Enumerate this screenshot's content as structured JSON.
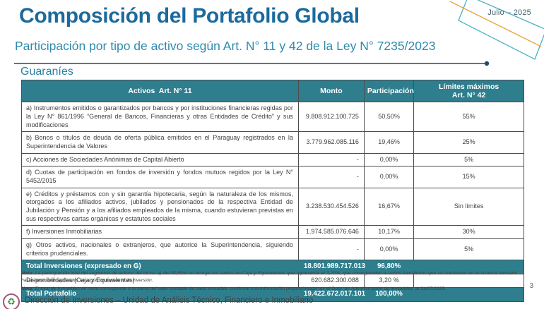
{
  "slide": {
    "title": "Composición del Portafolio Global",
    "subtitle": "Participación por tipo de activo según Art. N° 11 y 42 de la Ley N° 7235/2023",
    "date": "Julio – 2025",
    "section_label": "Guaraníes",
    "page_number": "3",
    "footer_text": "Dirección de Inversiones – Unidad de Análisis Técnico, Financiero e Inmobiliario",
    "logo_icon": "♻"
  },
  "colors": {
    "title_blue": "#1b6a9d",
    "subtitle_blue": "#2e8bac",
    "table_header_teal": "#2e7e8e",
    "total_row_teal": "#2e7e8e",
    "accent_teal_line": "#4ab2c6",
    "accent_orange_line": "#e9a23b",
    "divider_dark_teal": "#1c4f63",
    "body_text": "#3f3f3f"
  },
  "table": {
    "columns": [
      "Activos  Art. N° 11",
      "Monto",
      "Participación",
      "Límites máximos\nArt. N° 42"
    ],
    "rows": [
      {
        "label": "a) Instrumentos emitidos o garantizados por bancos y por instituciones financieras regidas por la Ley N° 861/1996 “General de Bancos, Financieras y otras Entidades de Crédito” y sus modificaciones",
        "monto": "9.808.912.100.725",
        "participacion": "50,50%",
        "limite": "55%"
      },
      {
        "label": "b) Bonos o títulos de deuda de oferta pública emitidos en el Paraguay registrados en la Superintendencia de Valores",
        "monto": "3.779.962.085.116",
        "participacion": "19,46%",
        "limite": "25%"
      },
      {
        "label": "c) Acciones de Sociedades Anónimas de Capital Abierto",
        "monto": "-",
        "participacion": "0,00%",
        "limite": "5%"
      },
      {
        "label": "d) Cuotas de participación en fondos de inversión y fondos mutuos regidos por la Ley N° 5452/2015",
        "monto": "-",
        "participacion": "0,00%",
        "limite": "15%"
      },
      {
        "label": "e) Créditos y préstamos con y sin garantía hipotecaria, según la naturaleza de los mismos, otorgados a los afiliados activos, jubilados y pensionados de la respectiva Entidad de Jubilación y Pensión y a los afiliados empleados de la misma, cuando estuvieran previstas en sus respectivas cartas orgánicas y estatutos sociales",
        "monto": "3.238.530.454.526",
        "participacion": "16,67%",
        "limite": "Sin límites"
      },
      {
        "label": "f) Inversiones Inmobiliarias",
        "monto": "1.974.585.076.646",
        "participacion": "10,17%",
        "limite": "30%"
      },
      {
        "label": "g) Otros activos, nacionales o extranjeros, que autorice la Superintendencia, siguiendo criterios prudenciales.",
        "monto": "-",
        "participacion": "0,00%",
        "limite": "5%"
      }
    ],
    "summary_rows": [
      {
        "variant": "total",
        "label": "Total Inversiones (expresado en ₲)",
        "monto": "18.801.989.717.013",
        "participacion": "96,80%",
        "limite": ""
      },
      {
        "variant": "plain",
        "label": "Disponibilidades (Caja y Equivalentes)",
        "monto": "620.682.300.088",
        "participacion": "3,20 %",
        "limite": ""
      },
      {
        "variant": "total",
        "label": "Total Portafolio",
        "monto": "19.422.672.017.101",
        "participacion": "100,00%",
        "limite": ""
      }
    ]
  },
  "notes": [
    {
      "label": "Nota:",
      "text": "La participación total del segmento de activos del inciso a) del 50,50% no incluye los saldos en Caja y Equivalentes que representa el 3,20%, que corresponden a saldos transitorios que se mantienen en el sistema bancario hasta tanto sean aplicados en algún instrumento de inversión."
    },
    {
      "label": "Nota:",
      "text": "El total de Inmuebles de renta corresponde a la suma del valor contable de cada inmueble, conforme a la información proporcionada por el Dpto. de Administración de Inmuebles, al 31/07/2025."
    }
  ]
}
